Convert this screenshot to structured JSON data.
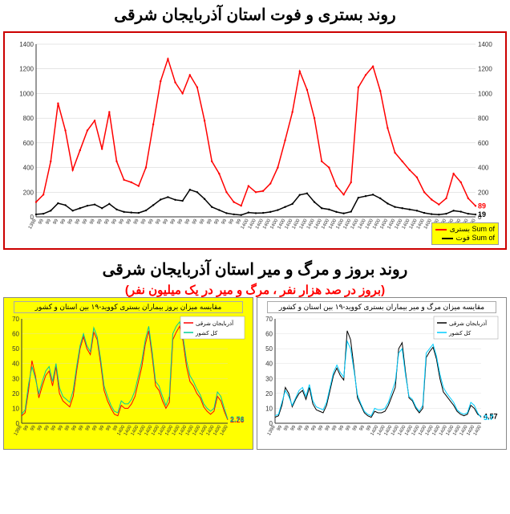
{
  "section1": {
    "title": "روند بستری و فوت استان آذربایجان شرقی",
    "chart": {
      "type": "line",
      "background": "#ffffff",
      "grid_color": "#cccccc",
      "ylim": [
        0,
        1400
      ],
      "ytick_step": 200,
      "yticks": [
        0,
        200,
        400,
        600,
        800,
        1000,
        1200,
        1400
      ],
      "right_ylim": [
        0,
        1400
      ],
      "series": [
        {
          "name": "بستری",
          "legend_label": "Sum of بستری",
          "color": "#ff0000",
          "line_width": 1.5,
          "marker": "dot",
          "end_value": 89,
          "data": [
            120,
            180,
            450,
            920,
            700,
            380,
            540,
            700,
            780,
            550,
            850,
            450,
            300,
            280,
            250,
            400,
            750,
            1100,
            1280,
            1090,
            1000,
            1150,
            1050,
            780,
            450,
            350,
            200,
            120,
            90,
            250,
            200,
            210,
            270,
            400,
            620,
            850,
            1180,
            1030,
            800,
            450,
            400,
            250,
            180,
            280,
            1050,
            1150,
            1220,
            1020,
            720,
            520,
            450,
            380,
            320,
            200,
            140,
            100,
            150,
            350,
            280,
            150,
            89
          ]
        },
        {
          "name": "فوت",
          "legend_label": "Sum of فوت",
          "color": "#000000",
          "line_width": 1.5,
          "marker": "dot",
          "end_value": 19,
          "data": [
            20,
            25,
            50,
            110,
            95,
            50,
            70,
            90,
            100,
            70,
            105,
            60,
            40,
            35,
            32,
            52,
            95,
            140,
            160,
            138,
            130,
            220,
            200,
            145,
            80,
            55,
            30,
            20,
            15,
            35,
            30,
            32,
            40,
            55,
            80,
            105,
            178,
            190,
            120,
            70,
            60,
            40,
            28,
            42,
            155,
            168,
            180,
            150,
            108,
            80,
            70,
            60,
            50,
            32,
            22,
            18,
            25,
            50,
            42,
            25,
            19
          ]
        }
      ],
      "x_labels": [
        "1398",
        "99",
        "99",
        "99",
        "99",
        "99",
        "99",
        "99",
        "99",
        "99",
        "99",
        "99",
        "99",
        "99",
        "99",
        "99",
        "99",
        "99",
        "99",
        "99",
        "99",
        "99",
        "99",
        "99",
        "99",
        "99",
        "99",
        "99",
        "99",
        "1400",
        "1400",
        "1400",
        "1400",
        "1400",
        "1400",
        "1400",
        "1400",
        "1400",
        "1400",
        "1400",
        "1400",
        "1400",
        "1400",
        "1400",
        "1400",
        "1400",
        "1400",
        "1400",
        "1400",
        "1400",
        "1400",
        "1400",
        "1400",
        "1400",
        "1400",
        "1400",
        "1400",
        "1400",
        "1400",
        "1400",
        "1400"
      ]
    }
  },
  "section2": {
    "title": "روند بروز و مرگ و میر استان آذربایجان شرقی",
    "subtitle": "(بروز در صد هزار نفر ، مرگ و میر در یک میلیون نفر)",
    "subtitle_color": "#ff0000",
    "left_chart": {
      "type": "line",
      "background": "#ffff00",
      "title": "مقایسه میزان بروز بیماران بستری کووید-۱۹ بین استان و کشور",
      "grid_color": "#e0e0a0",
      "series": [
        {
          "name": "آذربایجان شرقی",
          "color": "#ff0000",
          "end_value": 2.26,
          "data": [
            5,
            7,
            22,
            42,
            32,
            17,
            25,
            32,
            35,
            25,
            38,
            20,
            15,
            13,
            11,
            18,
            35,
            50,
            58,
            50,
            46,
            61,
            56,
            40,
            22,
            15,
            10,
            6,
            5,
            12,
            10,
            10,
            13,
            18,
            28,
            38,
            53,
            62,
            45,
            25,
            22,
            15,
            10,
            14,
            56,
            61,
            65,
            55,
            38,
            28,
            25,
            20,
            17,
            11,
            8,
            6,
            8,
            18,
            15,
            8,
            2.26
          ]
        },
        {
          "name": "کل کشور",
          "color": "#00cc99",
          "end_value": 2.76,
          "data": [
            6,
            9,
            26,
            38,
            30,
            20,
            28,
            35,
            38,
            28,
            40,
            24,
            18,
            16,
            14,
            22,
            38,
            52,
            60,
            52,
            48,
            64,
            58,
            43,
            25,
            18,
            12,
            8,
            7,
            15,
            13,
            13,
            16,
            22,
            32,
            42,
            56,
            65,
            48,
            28,
            25,
            18,
            12,
            18,
            60,
            65,
            68,
            58,
            42,
            32,
            28,
            23,
            19,
            13,
            10,
            8,
            10,
            21,
            18,
            10,
            2.76
          ]
        }
      ]
    },
    "right_chart": {
      "type": "line",
      "background": "#ffffff",
      "title": "مقایسه میزان مرگ و میر بیماران بستری کووید-۱۹ بین استان و کشور",
      "grid_color": "#e0e0e0",
      "series": [
        {
          "name": "آذربایجان شرقی",
          "color": "#000000",
          "end_value": 4.57,
          "data": [
            4,
            5,
            12,
            24,
            20,
            11,
            16,
            20,
            22,
            16,
            24,
            13,
            9,
            8,
            7,
            12,
            22,
            32,
            37,
            32,
            29,
            62,
            56,
            37,
            17,
            12,
            7,
            5,
            4,
            8,
            7,
            7,
            8,
            12,
            18,
            24,
            50,
            54,
            34,
            17,
            15,
            10,
            7,
            10,
            44,
            48,
            51,
            43,
            30,
            21,
            18,
            15,
            12,
            8,
            6,
            5,
            6,
            12,
            10,
            6,
            4.57
          ]
        },
        {
          "name": "کل کشور",
          "color": "#00ccff",
          "end_value": 3.7,
          "data": [
            5,
            6,
            14,
            22,
            18,
            12,
            17,
            22,
            24,
            18,
            26,
            15,
            11,
            10,
            9,
            14,
            24,
            34,
            39,
            34,
            31,
            55,
            50,
            35,
            19,
            13,
            8,
            6,
            5,
            10,
            9,
            9,
            10,
            14,
            21,
            28,
            47,
            50,
            32,
            18,
            16,
            11,
            8,
            12,
            47,
            50,
            53,
            45,
            33,
            24,
            20,
            17,
            14,
            9,
            7,
            6,
            7,
            14,
            12,
            7,
            3.7
          ]
        }
      ]
    },
    "legend_labels": {
      "province": "آذربایجان شرقی",
      "country": "کل کشور"
    }
  }
}
